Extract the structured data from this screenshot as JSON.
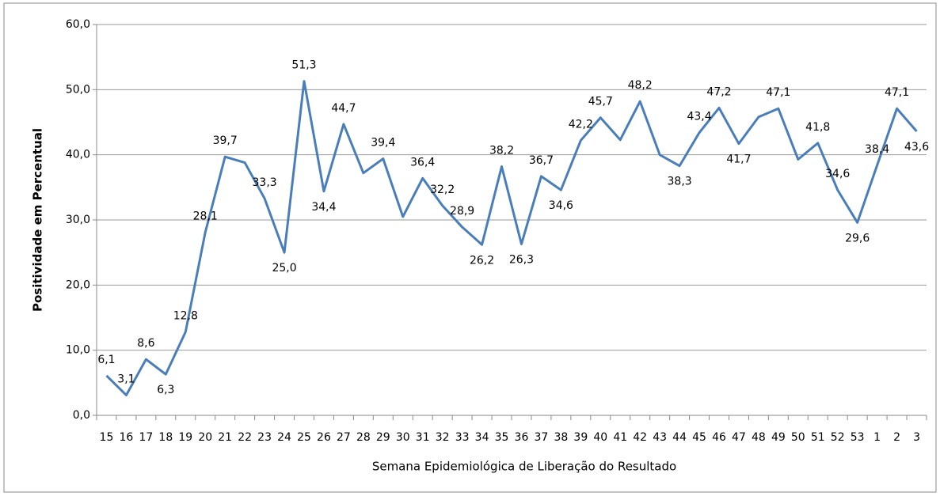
{
  "chart_data": {
    "type": "line",
    "x_label": "Semana Epidemiológica de Liberação do Resultado",
    "y_label": "Positividade em Percentual",
    "categories": [
      "15",
      "16",
      "17",
      "18",
      "19",
      "20",
      "21",
      "22",
      "23",
      "24",
      "25",
      "26",
      "27",
      "28",
      "29",
      "30",
      "31",
      "32",
      "33",
      "34",
      "35",
      "36",
      "37",
      "38",
      "39",
      "40",
      "41",
      "42",
      "43",
      "44",
      "45",
      "46",
      "47",
      "48",
      "49",
      "50",
      "51",
      "52",
      "53",
      "1",
      "2",
      "3"
    ],
    "series": [
      {
        "color": "#4a7ebb",
        "values": [
          6.1,
          3.1,
          8.6,
          6.3,
          12.8,
          28.1,
          39.7,
          38.8,
          33.3,
          25.0,
          51.3,
          34.4,
          44.7,
          37.2,
          39.4,
          30.5,
          36.4,
          32.2,
          28.9,
          26.2,
          38.2,
          26.3,
          36.7,
          34.6,
          42.2,
          45.7,
          42.3,
          48.2,
          40.0,
          38.3,
          43.4,
          47.2,
          41.7,
          45.8,
          47.1,
          39.3,
          41.8,
          34.6,
          29.6,
          38.4,
          47.1,
          43.6
        ],
        "value_labels": [
          "6,1",
          "3,1",
          "8,6",
          "6,3",
          "12,8",
          "28,1",
          "39,7",
          null,
          "33,3",
          "25,0",
          "51,3",
          "34,4",
          "44,7",
          null,
          "39,4",
          null,
          "36,4",
          "32,2",
          "28,9",
          "26,2",
          "38,2",
          "26,3",
          "36,7",
          "34,6",
          "42,2",
          "45,7",
          null,
          "48,2",
          null,
          "38,3",
          "43,4",
          "47,2",
          "41,7",
          null,
          "47,1",
          null,
          "41,8",
          "34,6",
          "29,6",
          "38,4",
          "47,1",
          "43,6"
        ]
      }
    ],
    "ylim": [
      0,
      60
    ],
    "yticks": [
      {
        "value": 0,
        "label": "0,0"
      },
      {
        "value": 10,
        "label": "10,0"
      },
      {
        "value": 20,
        "label": "20,0"
      },
      {
        "value": 30,
        "label": "30,0"
      },
      {
        "value": 40,
        "label": "40,0"
      },
      {
        "value": 50,
        "label": "50,0"
      },
      {
        "value": 60,
        "label": "60,0"
      }
    ],
    "grid": true
  }
}
